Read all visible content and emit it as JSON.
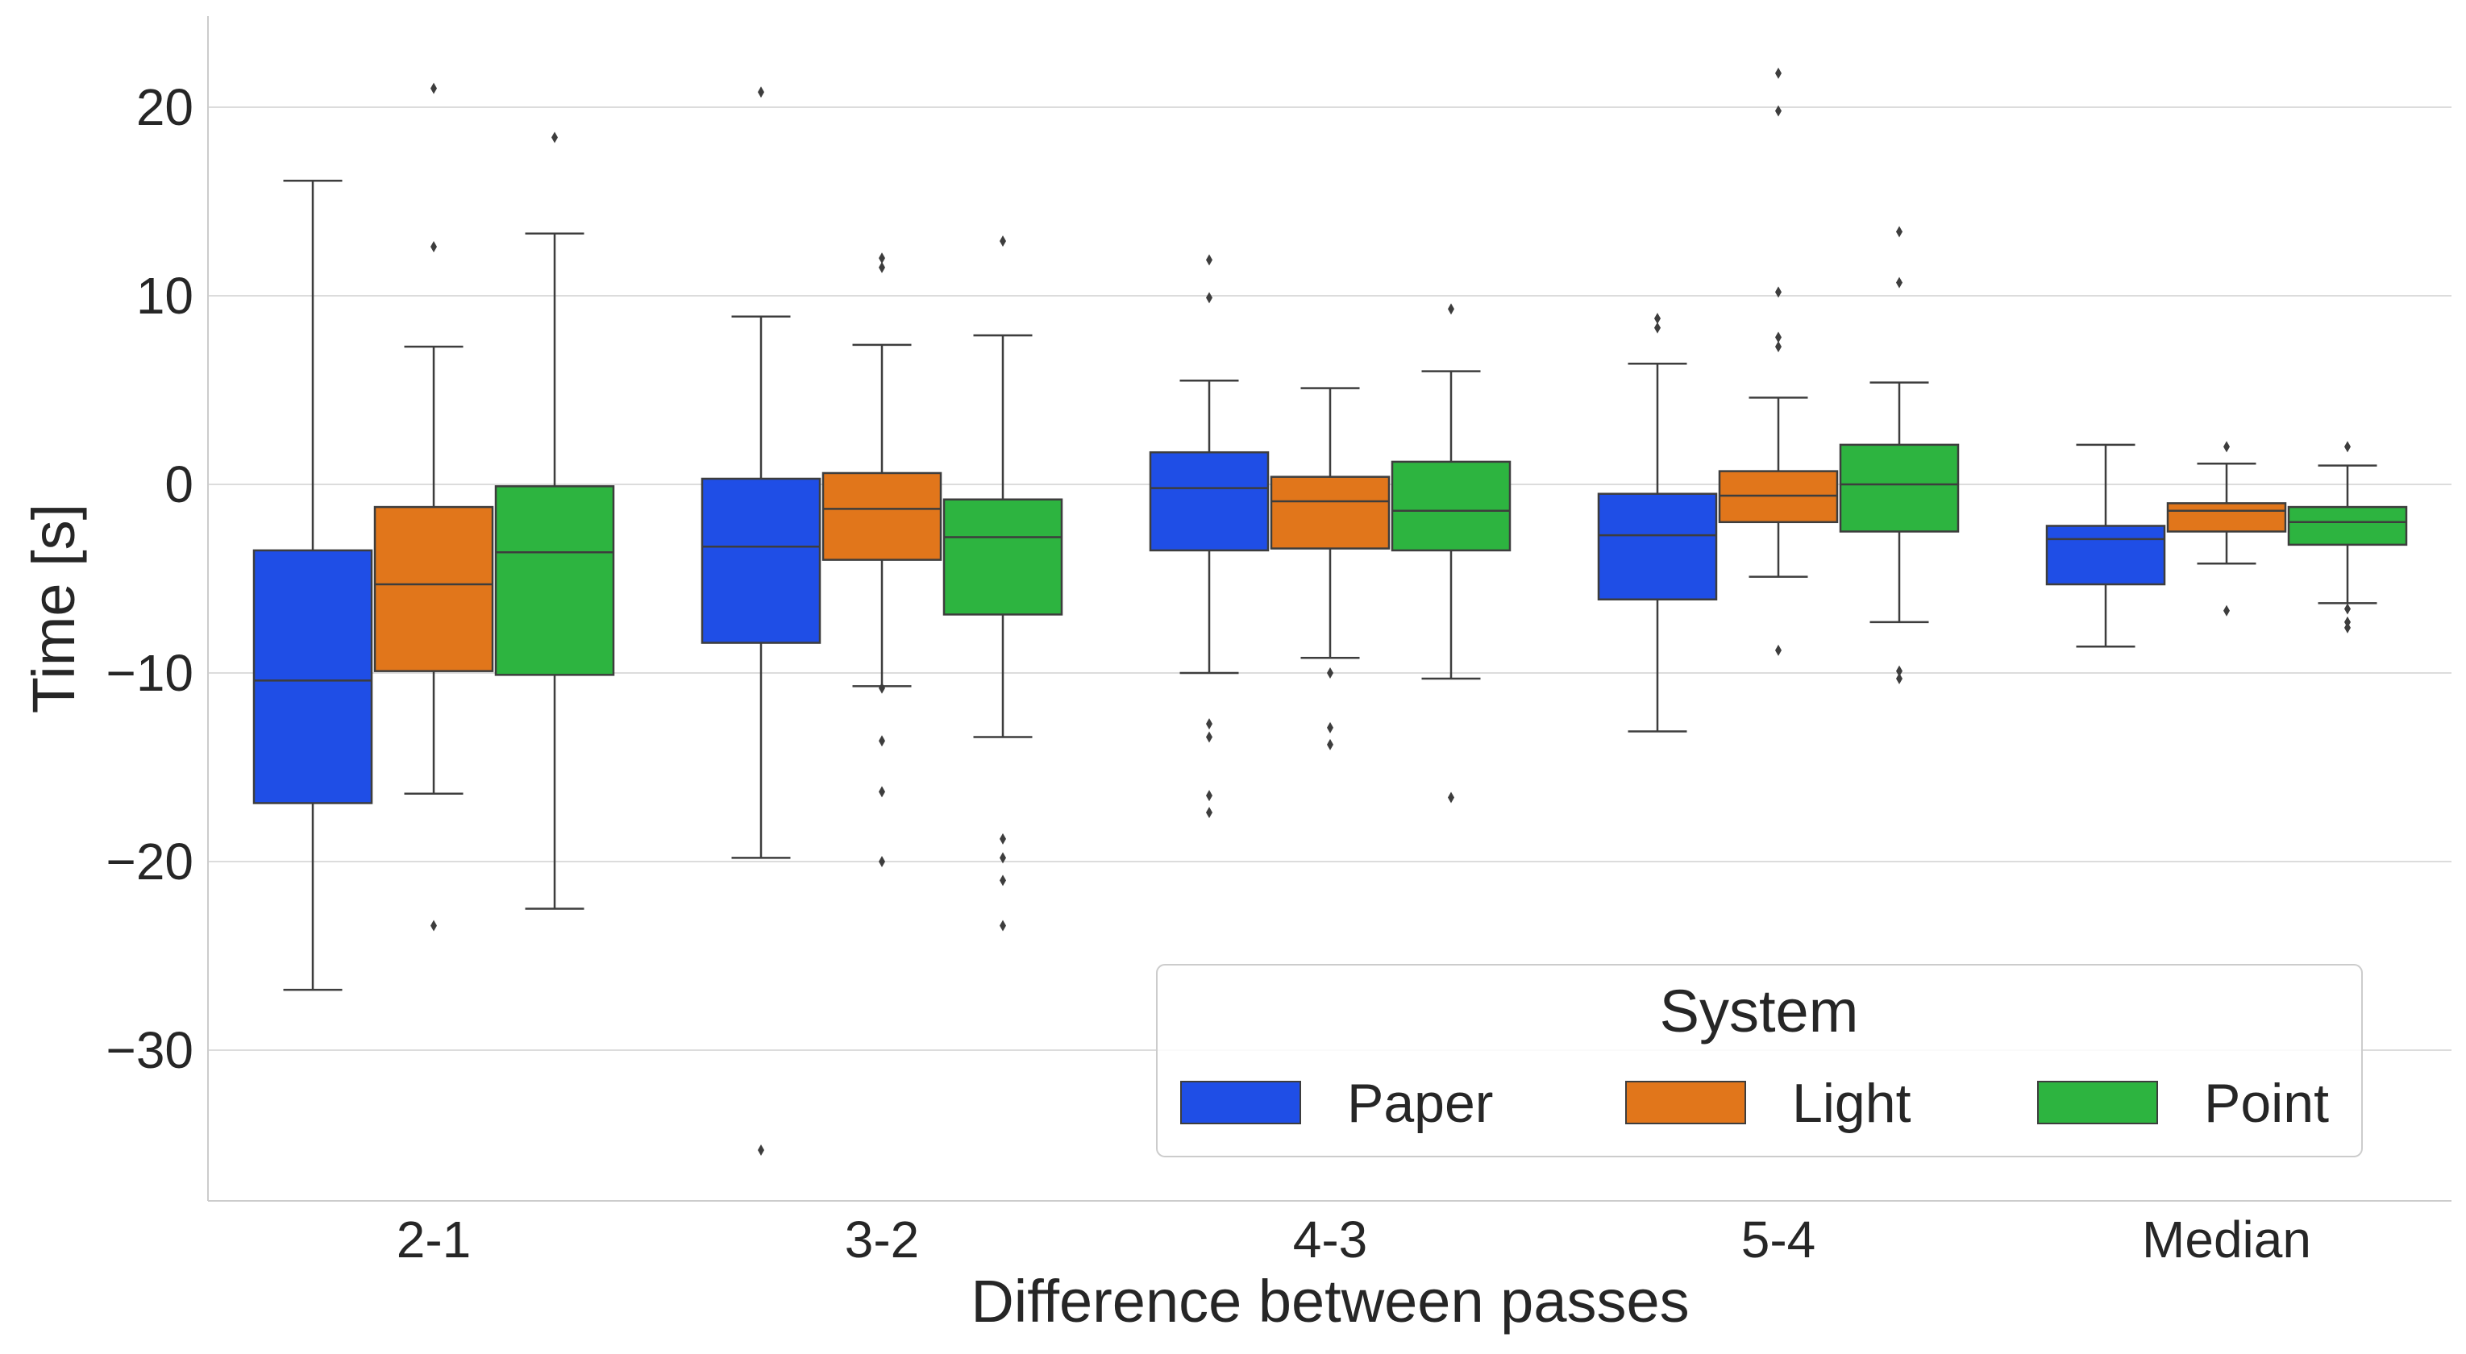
{
  "chart_data": {
    "type": "box",
    "xlabel": "Difference between passes",
    "ylabel": "Time [s]",
    "ylim": [
      -38,
      24.5
    ],
    "yticks": [
      20,
      10,
      0,
      -10,
      -20,
      -30
    ],
    "ytick_labels": [
      "20",
      "10",
      "0",
      "−10",
      "−20",
      "−30"
    ],
    "categories": [
      "2-1",
      "3-2",
      "4-3",
      "5-4",
      "Median"
    ],
    "grid": "horizontal",
    "legend": {
      "title": "System",
      "placement": "lower-right",
      "entries": [
        "Paper",
        "Light",
        "Point"
      ]
    },
    "series": [
      {
        "name": "Paper",
        "color": "#1f4ee6",
        "boxes": [
          {
            "whisker_low": -26.8,
            "q1": -16.9,
            "median": -10.4,
            "q3": -3.5,
            "whisker_high": 16.1,
            "outliers": []
          },
          {
            "whisker_low": -19.8,
            "q1": -8.4,
            "median": -3.3,
            "q3": 0.3,
            "whisker_high": 8.9,
            "outliers": [
              20.8,
              -35.3
            ]
          },
          {
            "whisker_low": -10.0,
            "q1": -3.5,
            "median": -0.2,
            "q3": 1.7,
            "whisker_high": 5.5,
            "outliers": [
              11.9,
              9.9,
              -12.7,
              -13.4,
              -16.5,
              -17.4
            ]
          },
          {
            "whisker_low": -13.1,
            "q1": -6.1,
            "median": -2.7,
            "q3": -0.5,
            "whisker_high": 6.4,
            "outliers": [
              8.8,
              8.3
            ]
          },
          {
            "whisker_low": -8.6,
            "q1": -5.3,
            "median": -2.9,
            "q3": -2.2,
            "whisker_high": 2.1,
            "outliers": []
          }
        ]
      },
      {
        "name": "Light",
        "color": "#e1761b",
        "boxes": [
          {
            "whisker_low": -16.4,
            "q1": -9.9,
            "median": -5.3,
            "q3": -1.2,
            "whisker_high": 7.3,
            "outliers": [
              21.0,
              12.6,
              -23.4
            ]
          },
          {
            "whisker_low": -10.7,
            "q1": -4.0,
            "median": -1.3,
            "q3": 0.6,
            "whisker_high": 7.4,
            "outliers": [
              12.0,
              11.5,
              -10.8,
              -13.6,
              -16.3,
              -20.0
            ]
          },
          {
            "whisker_low": -9.2,
            "q1": -3.4,
            "median": -0.9,
            "q3": 0.4,
            "whisker_high": 5.1,
            "outliers": [
              -10.0,
              -12.9,
              -13.8
            ]
          },
          {
            "whisker_low": -4.9,
            "q1": -2.0,
            "median": -0.6,
            "q3": 0.7,
            "whisker_high": 4.6,
            "outliers": [
              21.8,
              19.8,
              10.2,
              7.8,
              7.3,
              -8.8
            ]
          },
          {
            "whisker_low": -4.2,
            "q1": -2.5,
            "median": -1.4,
            "q3": -1.0,
            "whisker_high": 1.1,
            "outliers": [
              2.0,
              -6.7
            ]
          }
        ]
      },
      {
        "name": "Point",
        "color": "#2db440",
        "boxes": [
          {
            "whisker_low": -22.5,
            "q1": -10.1,
            "median": -3.6,
            "q3": -0.1,
            "whisker_high": 13.3,
            "outliers": [
              18.4
            ]
          },
          {
            "whisker_low": -13.4,
            "q1": -6.9,
            "median": -2.8,
            "q3": -0.8,
            "whisker_high": 7.9,
            "outliers": [
              12.9,
              -18.8,
              -19.8,
              -21.0,
              -23.4
            ]
          },
          {
            "whisker_low": -10.3,
            "q1": -3.5,
            "median": -1.4,
            "q3": 1.2,
            "whisker_high": 6.0,
            "outliers": [
              9.3,
              -16.6
            ]
          },
          {
            "whisker_low": -7.3,
            "q1": -2.5,
            "median": 0.0,
            "q3": 2.1,
            "whisker_high": 5.4,
            "outliers": [
              13.4,
              10.7,
              -9.9,
              -10.3
            ]
          },
          {
            "whisker_low": -6.3,
            "q1": -3.2,
            "median": -2.0,
            "q3": -1.2,
            "whisker_high": 1.0,
            "outliers": [
              2.0,
              -6.6,
              -7.3,
              -7.6
            ]
          }
        ]
      }
    ]
  }
}
